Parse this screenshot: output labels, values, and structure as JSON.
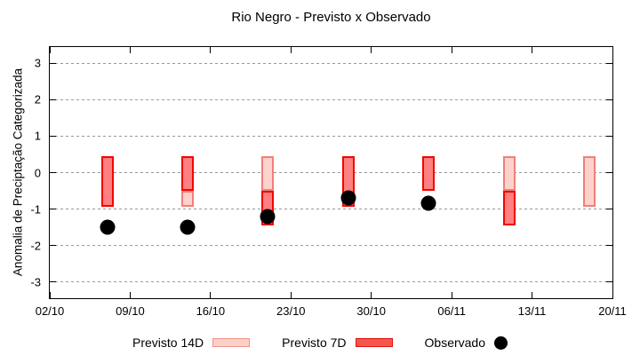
{
  "window": {
    "background": "#ffffff"
  },
  "chart_data": {
    "type": "bar",
    "title": "Rio Negro - Previsto x Observado",
    "ylabel": "Anomalia de Preciptação Categorizada",
    "xlabel": "",
    "ylim": [
      -3.45,
      3.45
    ],
    "yticks": [
      3,
      2,
      1,
      0,
      -1,
      -2,
      -3
    ],
    "x_total_days": 49,
    "xticks": [
      {
        "label": "02/10",
        "day": 0
      },
      {
        "label": "09/10",
        "day": 7
      },
      {
        "label": "16/10",
        "day": 14
      },
      {
        "label": "23/10",
        "day": 21
      },
      {
        "label": "30/10",
        "day": 28
      },
      {
        "label": "06/11",
        "day": 35
      },
      {
        "label": "13/11",
        "day": 42
      },
      {
        "label": "20/11",
        "day": 49
      }
    ],
    "grid": "horizontal-dotted",
    "legend_position": "bottom",
    "series": [
      {
        "name": "Previsto 14D",
        "type": "range-bar"
      },
      {
        "name": "Previsto 7D",
        "type": "range-bar"
      },
      {
        "name": "Observado",
        "type": "point"
      }
    ],
    "clusters": [
      {
        "date": "07/10",
        "day": 5,
        "previsto_14d": null,
        "previsto_7d": [
          0.45,
          -0.95
        ],
        "observado": -1.5
      },
      {
        "date": "14/10",
        "day": 12,
        "previsto_14d": [
          -0.5,
          -0.95
        ],
        "previsto_7d": [
          0.45,
          -0.5
        ],
        "observado": -1.5
      },
      {
        "date": "21/10",
        "day": 19,
        "previsto_14d": [
          0.45,
          -0.5
        ],
        "previsto_7d": [
          -0.5,
          -1.45
        ],
        "observado": -1.2
      },
      {
        "date": "28/10",
        "day": 26,
        "previsto_14d": null,
        "previsto_7d": [
          0.45,
          -0.95
        ],
        "observado": -0.7
      },
      {
        "date": "04/11",
        "day": 33,
        "previsto_14d": null,
        "previsto_7d": [
          0.45,
          -0.5
        ],
        "observado": -0.85
      },
      {
        "date": "11/11",
        "day": 40,
        "previsto_14d": [
          0.45,
          -0.5
        ],
        "previsto_7d": [
          -0.5,
          -1.45
        ],
        "observado": null
      },
      {
        "date": "18/11",
        "day": 47,
        "previsto_14d": [
          0.45,
          -0.95
        ],
        "previsto_7d": null,
        "observado": null
      }
    ],
    "colors": {
      "previsto_14d_fill": "#fcd3cc",
      "previsto_14d_border": "#f08078",
      "previsto_7d_fill": "#ff8080",
      "previsto_7d_border": "#f20500",
      "observado": "#000000",
      "grid": "#999999",
      "axis": "#000000",
      "legend_14d_fill": "#fbd0c9",
      "legend_14d_border": "#f19389",
      "legend_7d_fill": "#f5564c",
      "legend_7d_border": "#dd1410"
    },
    "legend": {
      "items": [
        {
          "label": "Previsto 14D"
        },
        {
          "label": "Previsto 7D"
        },
        {
          "label": "Observado"
        }
      ]
    }
  }
}
